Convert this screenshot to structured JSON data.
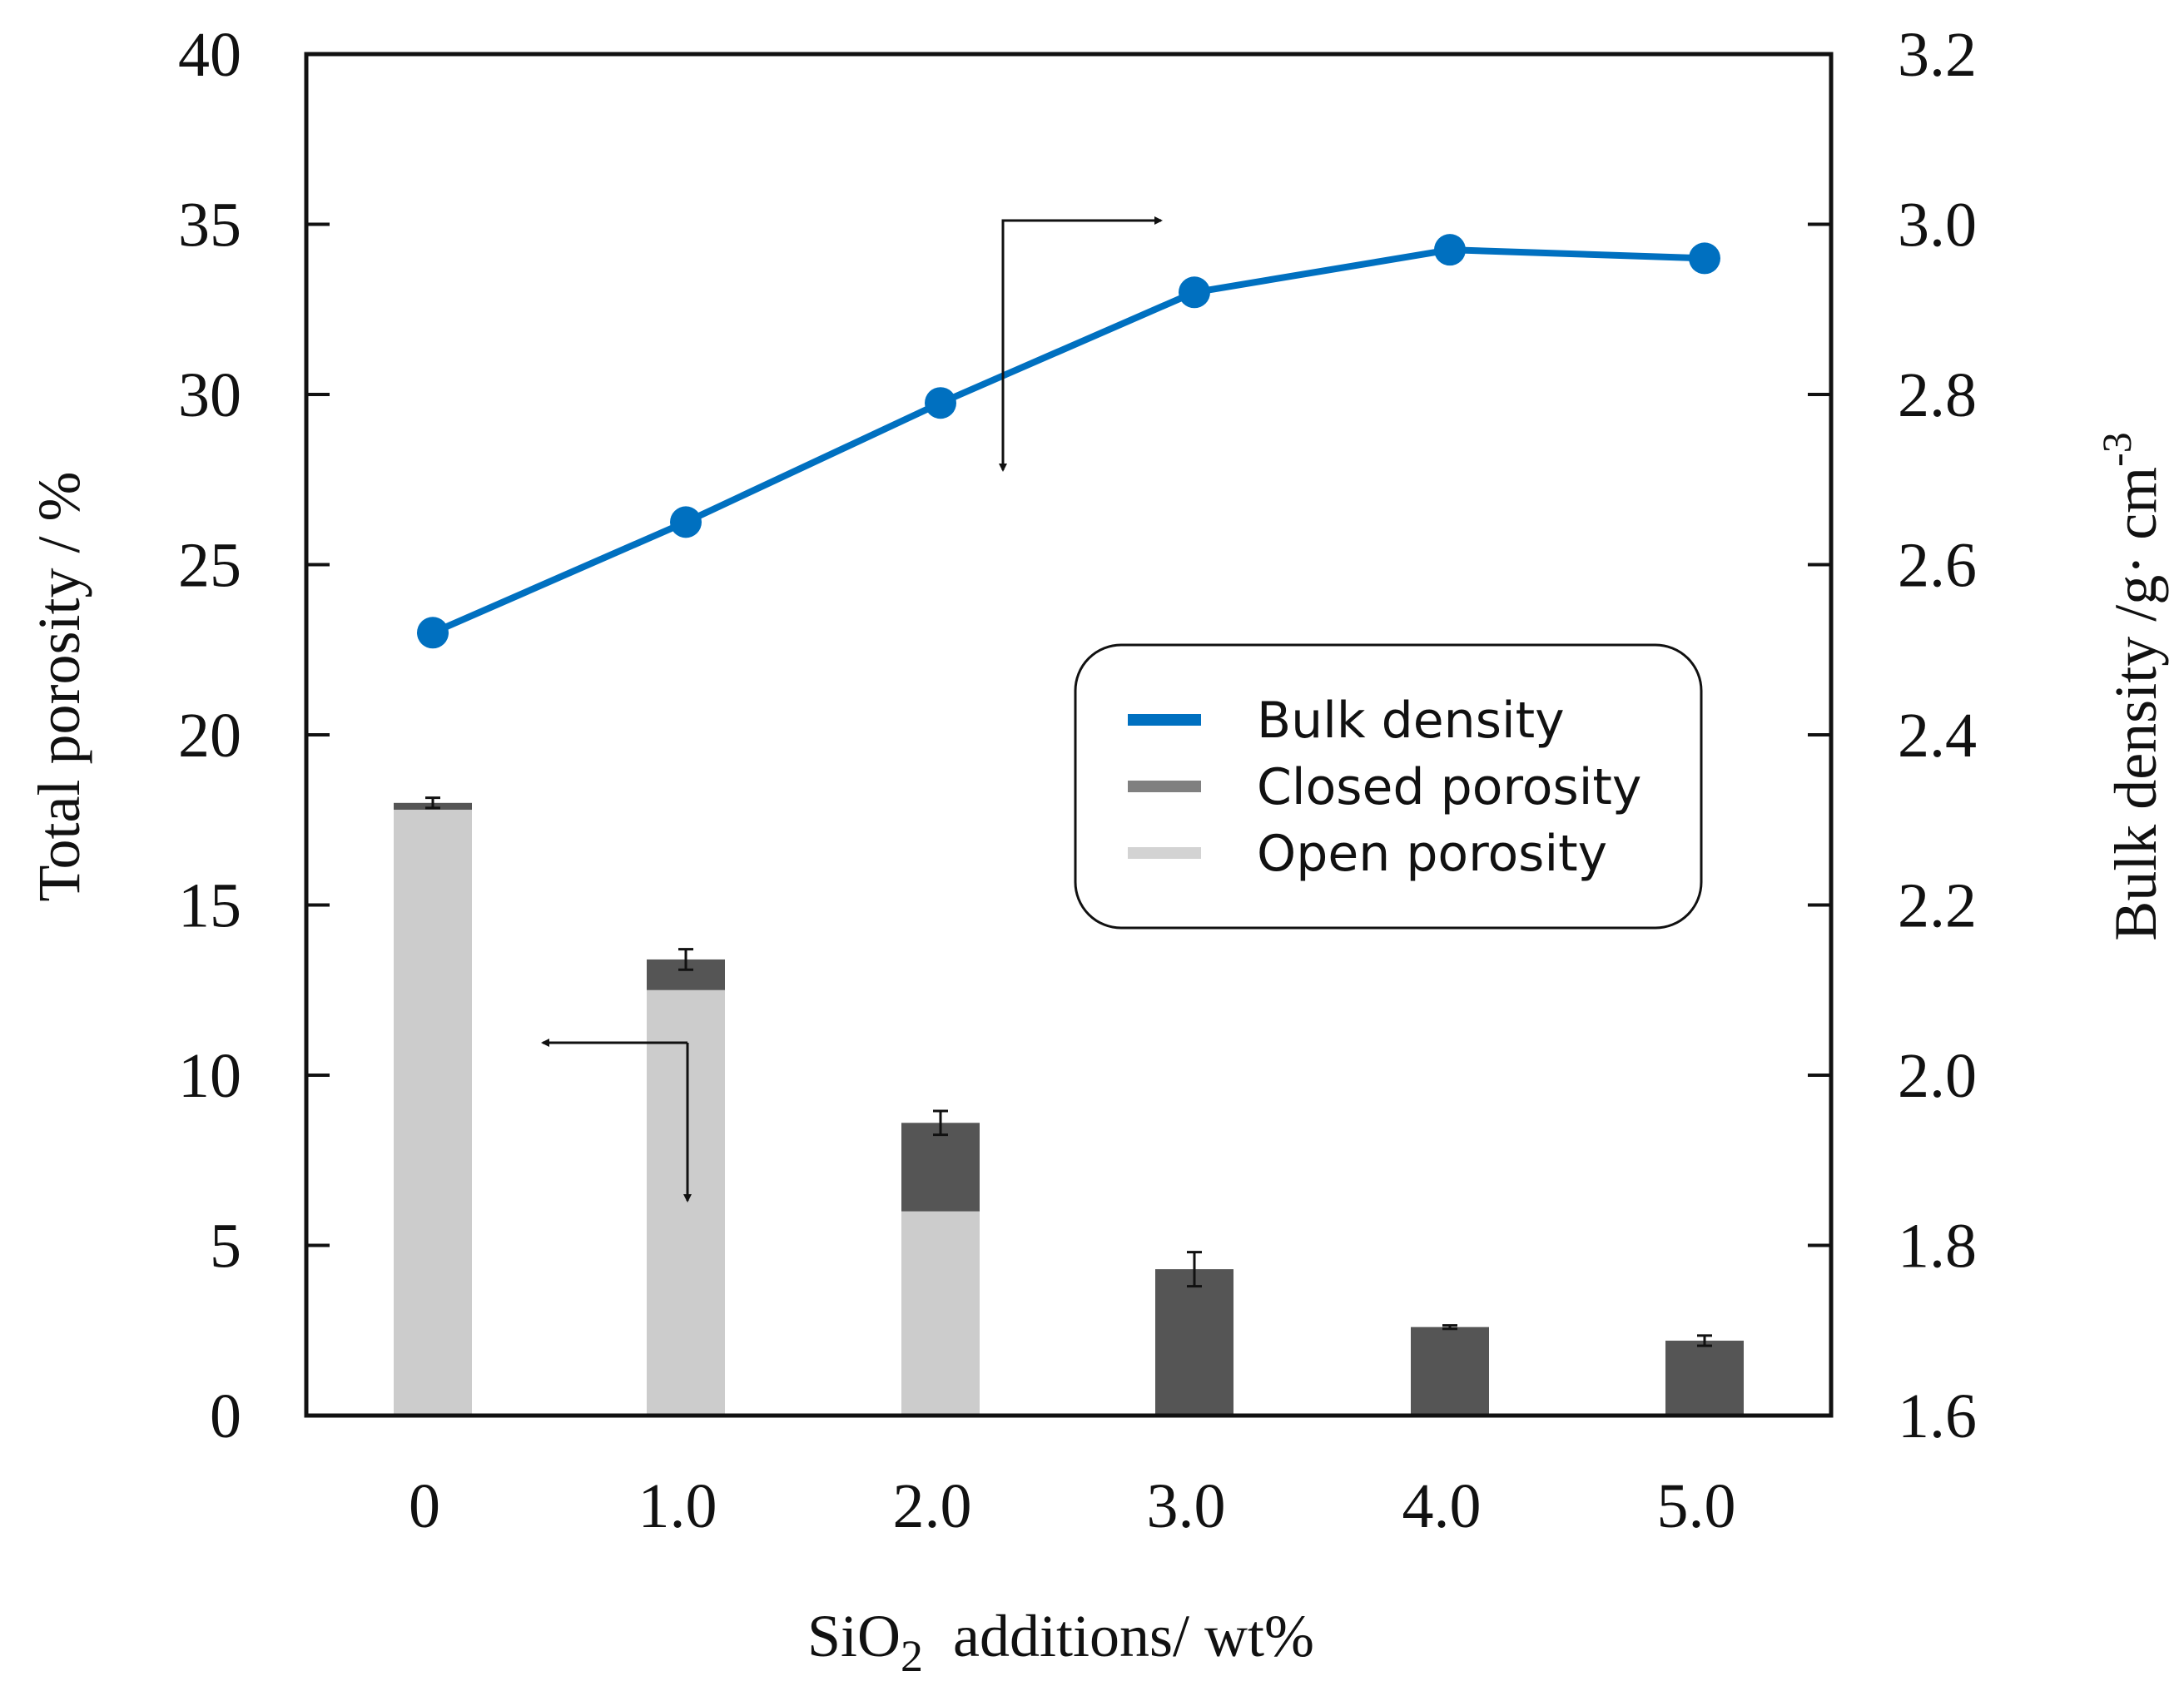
{
  "chart_data": {
    "type": "bar",
    "categories": [
      "0",
      "1.0",
      "2.0",
      "3.0",
      "4.0",
      "5.0"
    ],
    "xlabel": {
      "main": "SiO",
      "sub": "2",
      "rest": "  additions/ wt%"
    },
    "ylabel_left": "Total porosity / %",
    "ylabel_right": {
      "main": "Bulk  density /g· cm",
      "sup": "-3"
    },
    "ylim_left": [
      0,
      40
    ],
    "yticks_left": [
      "0",
      "5",
      "10",
      "15",
      "20",
      "25",
      "30",
      "35",
      "40"
    ],
    "ylim_right": [
      1.6,
      3.2
    ],
    "yticks_right": [
      "1.6",
      "1.8",
      "2.0",
      "2.2",
      "2.4",
      "2.6",
      "2.8",
      "3.0",
      "3.2"
    ],
    "stacked_series": [
      {
        "name": "Open porosity",
        "color": "#cccccc",
        "values": [
          17.8,
          12.5,
          6.0,
          0,
          0,
          0
        ]
      },
      {
        "name": "Closed porosity",
        "color": "#555555",
        "values": [
          0.2,
          0.9,
          2.6,
          4.3,
          2.6,
          2.2
        ]
      }
    ],
    "error_bars": [
      0.15,
      0.3,
      0.35,
      0.5,
      0.05,
      0.15
    ],
    "line_series": {
      "name": "Bulk density",
      "axis": "right",
      "color": "#0070c0",
      "values": [
        2.52,
        2.65,
        2.79,
        2.92,
        2.97,
        2.96
      ]
    },
    "legend": {
      "placement": "center-right",
      "entries": [
        {
          "label": "Bulk density",
          "color": "#0070c0"
        },
        {
          "label": "Closed porosity",
          "color": "#808080"
        },
        {
          "label": "Open porosity",
          "color": "#d3d3d3"
        }
      ]
    },
    "grid": false
  }
}
